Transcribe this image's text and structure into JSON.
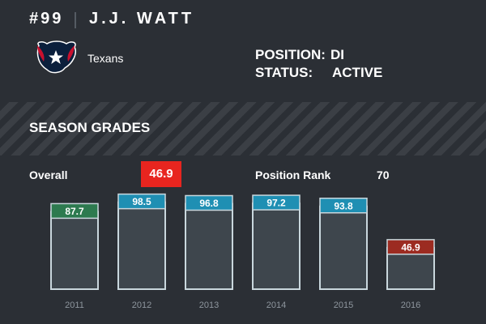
{
  "player": {
    "number": "#99",
    "name": "J.J. WATT",
    "team": "Texans",
    "position_label": "POSITION:",
    "position": "DI",
    "status_label": "STATUS:",
    "status": "ACTIVE",
    "logo_icon": "houston-texans-logo-icon"
  },
  "section": {
    "title": "SEASON GRADES"
  },
  "summary": {
    "overall_label": "Overall",
    "overall_value": "46.9",
    "overall_color": "#e8251f",
    "position_rank_label": "Position Rank",
    "position_rank": "70"
  },
  "chart_data": {
    "type": "bar",
    "categories": [
      "2011",
      "2012",
      "2013",
      "2014",
      "2015",
      "2016"
    ],
    "values": [
      87.7,
      98.5,
      96.8,
      97.2,
      93.8,
      46.9
    ],
    "labels": [
      "87.7",
      "98.5",
      "96.8",
      "97.2",
      "93.8",
      "46.9"
    ],
    "badge_colors": [
      "#2d7a4f",
      "#1f8fb3",
      "#1f8fb3",
      "#1f8fb3",
      "#1f8fb3",
      "#9c2b21"
    ],
    "ylim": [
      0,
      100
    ],
    "title": "",
    "xlabel": "",
    "ylabel": ""
  },
  "colors": {
    "background": "#2b2f35",
    "bar_fill": "#3e464d",
    "bar_outline": "#c9d7dd"
  }
}
